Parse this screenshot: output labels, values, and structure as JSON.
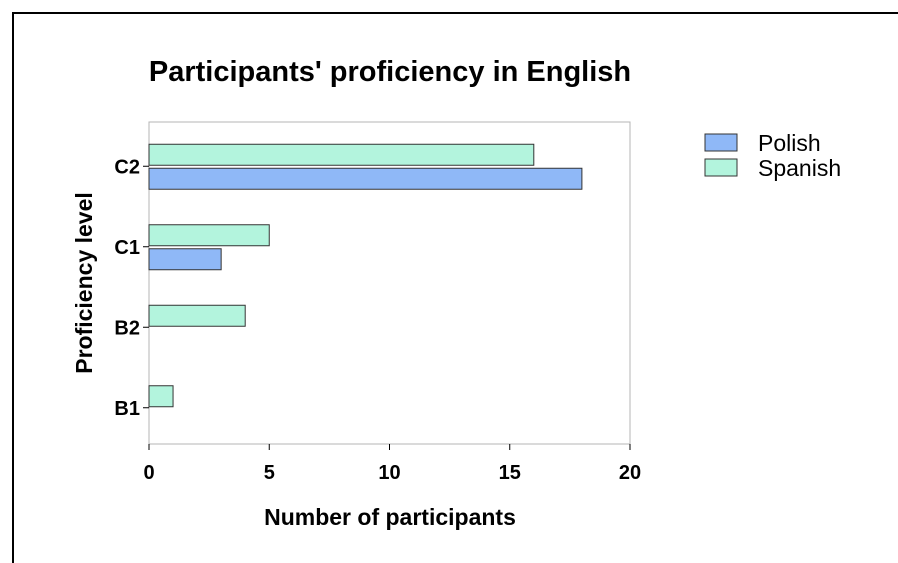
{
  "chart_data": {
    "type": "bar",
    "orientation": "horizontal",
    "title": "Participants' proficiency in English",
    "xlabel": "Number of participants",
    "ylabel": "Proficiency level",
    "categories": [
      "B1",
      "B2",
      "C1",
      "C2"
    ],
    "series": [
      {
        "name": "Polish",
        "color": "#8fb8f7",
        "values": [
          0,
          0,
          3,
          18
        ]
      },
      {
        "name": "Spanish",
        "color": "#b3f4dd",
        "values": [
          1,
          4,
          5,
          16
        ]
      }
    ],
    "xlim": [
      0,
      20
    ],
    "xticks": [
      0,
      5,
      10,
      15,
      20
    ],
    "grid": false,
    "legend_position": "top-right"
  }
}
